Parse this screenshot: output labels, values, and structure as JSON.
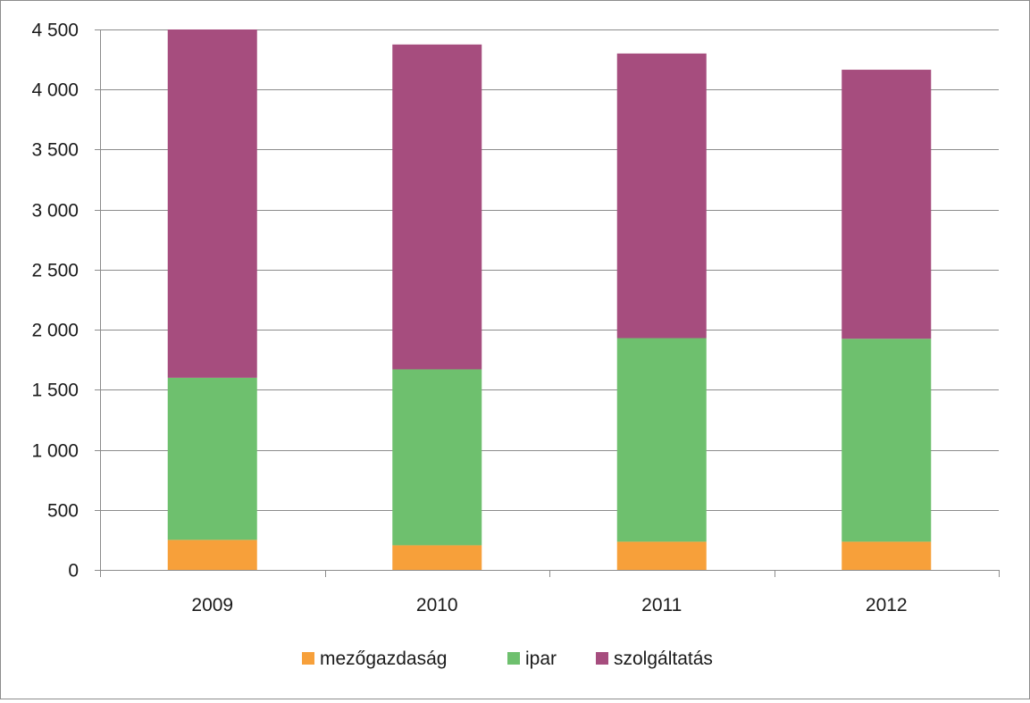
{
  "chart_data": {
    "type": "bar",
    "stacked": true,
    "title": "",
    "xlabel": "",
    "ylabel": "",
    "categories": [
      "2009",
      "2010",
      "2011",
      "2012"
    ],
    "series": [
      {
        "name": "mezőgazdaság",
        "color": "#F7A03A",
        "values": [
          250,
          205,
          235,
          235
        ]
      },
      {
        "name": "ipar",
        "color": "#6EC06E",
        "values": [
          1350,
          1465,
          1695,
          1690
        ]
      },
      {
        "name": "szolgáltatás",
        "color": "#A64D7E",
        "values": [
          2900,
          2705,
          2370,
          2240
        ]
      }
    ],
    "ylim": [
      0,
      4500
    ],
    "yticks": [
      0,
      500,
      1000,
      1500,
      2000,
      2500,
      3000,
      3500,
      4000,
      4500
    ],
    "ytick_labels": [
      "0",
      "500",
      "1 000",
      "1 500",
      "2 000",
      "2 500",
      "3 000",
      "3 500",
      "4 000",
      "4 500"
    ],
    "grid": true,
    "legend_position": "bottom"
  }
}
